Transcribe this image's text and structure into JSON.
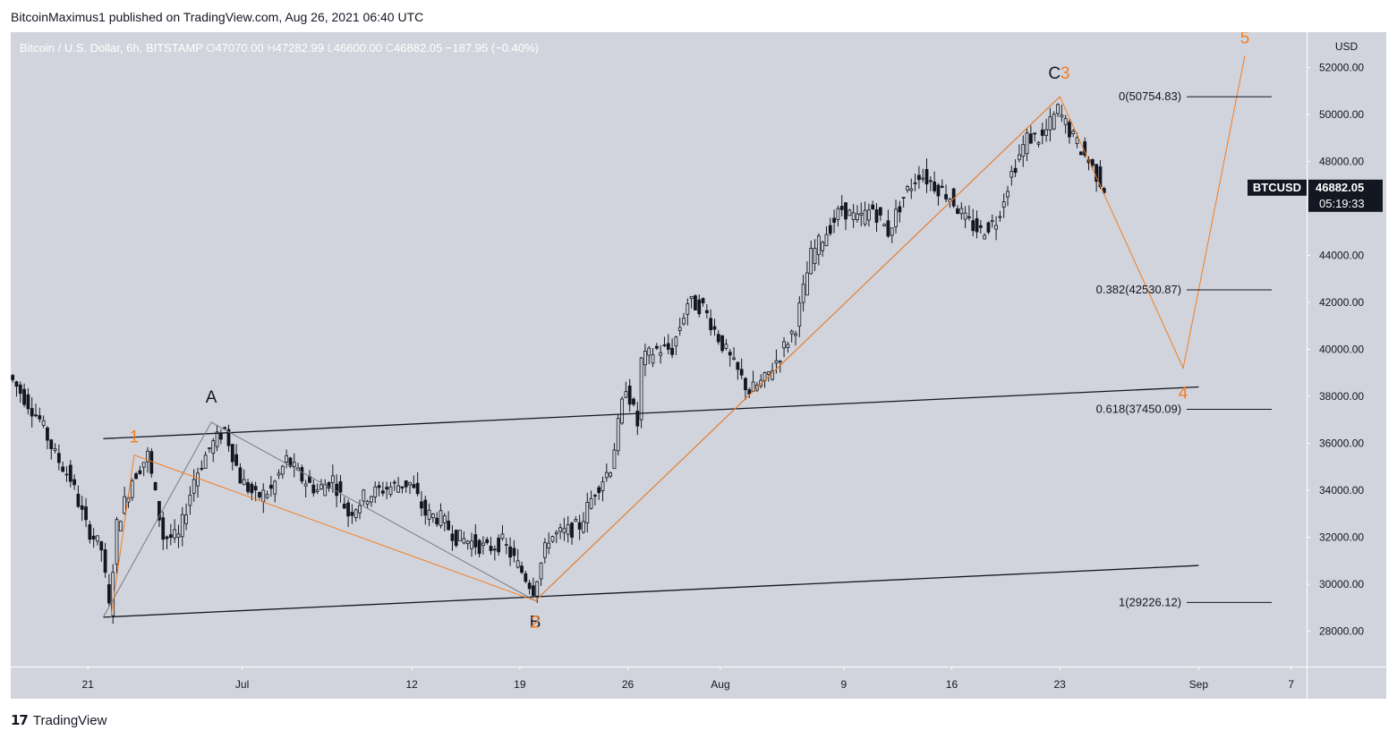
{
  "header": {
    "publish_line": "BitcoinMaximus1 published on TradingView.com, Aug 26, 2021 06:40 UTC"
  },
  "legend": {
    "symbol": "Bitcoin / U.S. Dollar, 6h, BITSTAMP",
    "o_label": "O",
    "o_value": "47070.00",
    "h_label": "H",
    "h_value": "47282.99",
    "l_label": "L",
    "l_value": "46600.00",
    "c_label": "C",
    "c_value": "46882.05",
    "change": "−187.95 (−0.40%)"
  },
  "price_axis": {
    "currency": "USD",
    "ticks": [
      "52000.00",
      "50000.00",
      "48000.00",
      "44000.00",
      "42000.00",
      "40000.00",
      "38000.00",
      "36000.00",
      "34000.00",
      "32000.00",
      "30000.00",
      "28000.00"
    ],
    "last_symbol": "BTCUSD",
    "last_price": "46882.05",
    "countdown": "05:19:33"
  },
  "time_axis": {
    "ticks": [
      "21",
      "Jul",
      "12",
      "19",
      "26",
      "Aug",
      "9",
      "16",
      "23",
      "Sep",
      "7"
    ]
  },
  "fib_levels": [
    {
      "label": "0(50754.83)",
      "price": 50754.83
    },
    {
      "label": "0.382(42530.87)",
      "price": 42530.87
    },
    {
      "label": "0.618(37450.09)",
      "price": 37450.09
    },
    {
      "label": "1(29226.12)",
      "price": 29226.12
    }
  ],
  "wave_labels": {
    "abc": [
      "A",
      "B",
      "C"
    ],
    "impulse": [
      "1",
      "2",
      "3",
      "4",
      "5"
    ]
  },
  "colors": {
    "plot_bg": "#d1d4dc",
    "panel_bg": "#d1d4dc",
    "candle": "#131722",
    "orange": "#f57c20",
    "gray_line": "#787b86",
    "trendline": "#131722",
    "price_tag_bg": "#131722"
  },
  "chart_data": {
    "type": "candlestick",
    "title": "Bitcoin / U.S. Dollar, 6h, BITSTAMP",
    "ylabel": "USD",
    "ylim": [
      26500,
      53500
    ],
    "x_range": [
      "2021-06-16",
      "2021-09-08"
    ],
    "ohlc_last": {
      "open": 47070.0,
      "high": 47282.99,
      "low": 46600.0,
      "close": 46882.05
    },
    "price_path": [
      [
        "2021-06-16",
        38900
      ],
      [
        "2021-06-18",
        37000
      ],
      [
        "2021-06-19",
        35500
      ],
      [
        "2021-06-20",
        34500
      ],
      [
        "2021-06-21",
        32500
      ],
      [
        "2021-06-22",
        31500
      ],
      [
        "2021-06-22T12",
        29000
      ],
      [
        "2021-06-23",
        32500
      ],
      [
        "2021-06-24",
        34500
      ],
      [
        "2021-06-25",
        35500
      ],
      [
        "2021-06-26",
        32000
      ],
      [
        "2021-06-27",
        32000
      ],
      [
        "2021-06-28",
        34500
      ],
      [
        "2021-06-29",
        35800
      ],
      [
        "2021-06-30",
        36600
      ],
      [
        "2021-07-01",
        34500
      ],
      [
        "2021-07-02",
        33700
      ],
      [
        "2021-07-03",
        34000
      ],
      [
        "2021-07-04",
        35300
      ],
      [
        "2021-07-05",
        34500
      ],
      [
        "2021-07-06",
        34000
      ],
      [
        "2021-07-07",
        34500
      ],
      [
        "2021-07-08",
        33000
      ],
      [
        "2021-07-09",
        33700
      ],
      [
        "2021-07-10",
        34000
      ],
      [
        "2021-07-11",
        34200
      ],
      [
        "2021-07-12",
        34300
      ],
      [
        "2021-07-13",
        33000
      ],
      [
        "2021-07-14",
        32800
      ],
      [
        "2021-07-15",
        32000
      ],
      [
        "2021-07-16",
        31800
      ],
      [
        "2021-07-17",
        31500
      ],
      [
        "2021-07-18",
        31800
      ],
      [
        "2021-07-19",
        30800
      ],
      [
        "2021-07-20",
        29800
      ],
      [
        "2021-07-21",
        32000
      ],
      [
        "2021-07-22",
        32200
      ],
      [
        "2021-07-23",
        32500
      ],
      [
        "2021-07-24",
        34000
      ],
      [
        "2021-07-25",
        35000
      ],
      [
        "2021-07-26",
        38500
      ],
      [
        "2021-07-26T18",
        36800
      ],
      [
        "2021-07-27",
        39500
      ],
      [
        "2021-07-28",
        40000
      ],
      [
        "2021-07-29",
        40000
      ],
      [
        "2021-07-30",
        42000
      ],
      [
        "2021-07-31",
        41800
      ],
      [
        "2021-08-01",
        40500
      ],
      [
        "2021-08-02",
        39300
      ],
      [
        "2021-08-03",
        38200
      ],
      [
        "2021-08-04",
        38700
      ],
      [
        "2021-08-05",
        39800
      ],
      [
        "2021-08-06",
        41000
      ],
      [
        "2021-08-07",
        44000
      ],
      [
        "2021-08-08",
        45000
      ],
      [
        "2021-08-09",
        46000
      ],
      [
        "2021-08-10",
        45500
      ],
      [
        "2021-08-11",
        46000
      ],
      [
        "2021-08-12",
        45000
      ],
      [
        "2021-08-13",
        46500
      ],
      [
        "2021-08-14",
        47500
      ],
      [
        "2021-08-15",
        47000
      ],
      [
        "2021-08-16",
        46500
      ],
      [
        "2021-08-17",
        45500
      ],
      [
        "2021-08-18",
        45000
      ],
      [
        "2021-08-19",
        45500
      ],
      [
        "2021-08-20",
        47500
      ],
      [
        "2021-08-21",
        49000
      ],
      [
        "2021-08-22",
        49000
      ],
      [
        "2021-08-23",
        50200
      ],
      [
        "2021-08-24",
        49000
      ],
      [
        "2021-08-25",
        48000
      ],
      [
        "2021-08-26",
        46882
      ]
    ],
    "annotations": {
      "abc_points": [
        {
          "label": "A",
          "date": "2021-06-29",
          "price": 36900
        },
        {
          "label": "B",
          "date": "2021-07-20",
          "price": 29300
        },
        {
          "label": "C",
          "date": "2021-08-23",
          "price": 50754.83
        }
      ],
      "impulse_points": [
        {
          "label": "1",
          "date": "2021-06-24",
          "price": 35500
        },
        {
          "label": "2",
          "date": "2021-07-20",
          "price": 29300
        },
        {
          "label": "3",
          "date": "2021-08-23",
          "price": 50754.83
        },
        {
          "label": "4",
          "date": "2021-08-31",
          "price": 39200
        },
        {
          "label": "5",
          "date": "2021-09-04",
          "price": 52500
        }
      ],
      "channel_upper": [
        [
          "2021-06-22",
          36200
        ],
        [
          "2021-09-01",
          38400
        ]
      ],
      "channel_lower": [
        [
          "2021-06-22",
          28600
        ],
        [
          "2021-09-01",
          30800
        ]
      ]
    }
  }
}
